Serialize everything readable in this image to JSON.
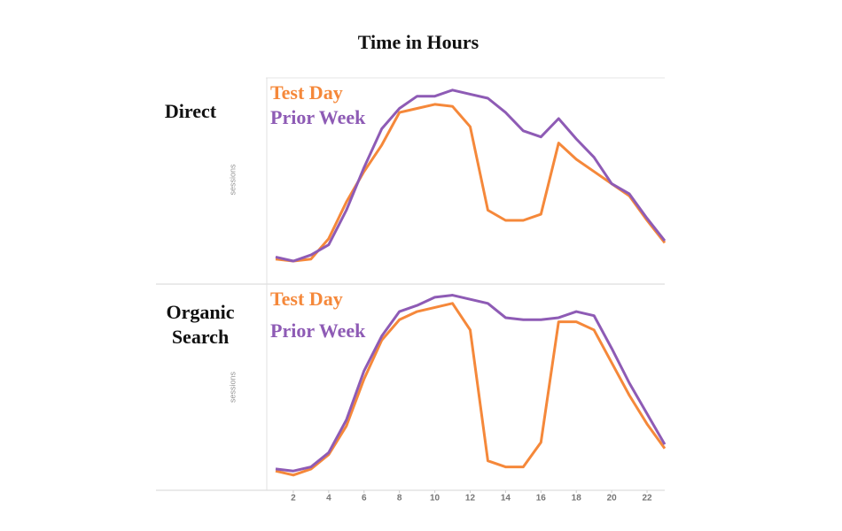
{
  "title": "Time in Hours",
  "chart_data": [
    {
      "type": "line",
      "label": "Direct",
      "y_label": "sessions",
      "x": [
        1,
        2,
        3,
        4,
        5,
        6,
        7,
        8,
        9,
        10,
        11,
        12,
        13,
        14,
        15,
        16,
        17,
        18,
        19,
        20,
        21,
        22,
        23
      ],
      "xlim": [
        0.5,
        23
      ],
      "ylim": [
        0,
        100
      ],
      "series": [
        {
          "name": "Test Day",
          "color": "#f5883a",
          "values": [
            11,
            10,
            11,
            21,
            39,
            54,
            67,
            83,
            85,
            87,
            86,
            76,
            35,
            30,
            30,
            33,
            68,
            60,
            54,
            48,
            42,
            30,
            19
          ]
        },
        {
          "name": "Prior Week",
          "color": "#8e5bb5",
          "values": [
            12,
            10,
            13,
            18,
            35,
            56,
            75,
            85,
            91,
            91,
            94,
            92,
            90,
            83,
            74,
            71,
            80,
            70,
            61,
            48,
            43,
            31,
            20
          ]
        }
      ]
    },
    {
      "type": "line",
      "label": "Organic Search",
      "y_label": "sessions",
      "x": [
        1,
        2,
        3,
        4,
        5,
        6,
        7,
        8,
        9,
        10,
        11,
        12,
        13,
        14,
        15,
        16,
        17,
        18,
        19,
        20,
        21,
        22,
        23
      ],
      "xlim": [
        0.5,
        23
      ],
      "ylim": [
        0,
        100
      ],
      "xticks": [
        2,
        4,
        6,
        8,
        10,
        12,
        14,
        16,
        18,
        20,
        22
      ],
      "series": [
        {
          "name": "Test Day",
          "color": "#f5883a",
          "values": [
            9,
            7,
            10,
            17,
            31,
            54,
            73,
            83,
            87,
            89,
            91,
            78,
            14,
            11,
            11,
            23,
            82,
            82,
            78,
            62,
            46,
            32,
            20
          ]
        },
        {
          "name": "Prior Week",
          "color": "#8e5bb5",
          "values": [
            10,
            9,
            11,
            18,
            34,
            58,
            75,
            87,
            90,
            94,
            95,
            93,
            91,
            84,
            83,
            83,
            84,
            87,
            85,
            69,
            52,
            37,
            22
          ]
        }
      ]
    }
  ]
}
